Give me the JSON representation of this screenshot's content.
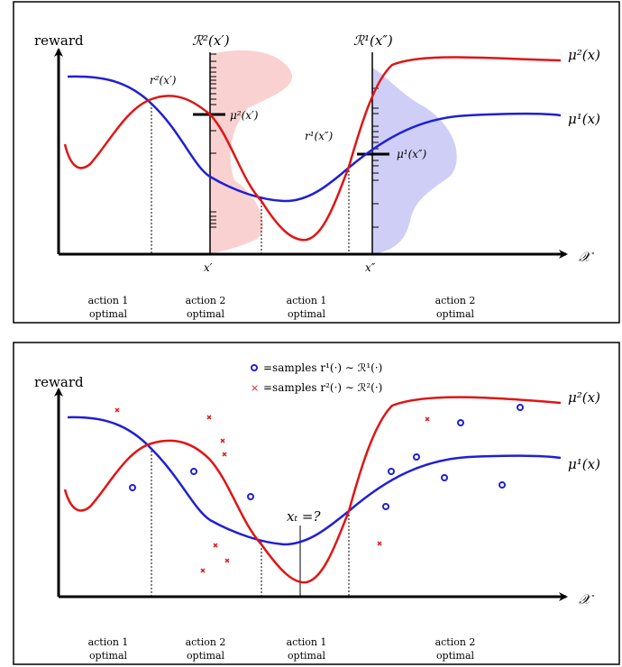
{
  "colors": {
    "mu1": "#1f1fd6",
    "mu2": "#e01515",
    "r1_shade": "#c9c9f5",
    "r2_shade": "#f9c9c9"
  },
  "top_panel": {
    "y_label": "reward",
    "x_axis_symbol": "𝒳",
    "curve_labels": {
      "mu1": "μ¹(x)",
      "mu2": "μ²(x)"
    },
    "dist_labels": {
      "r2": "ℛ²(x′)",
      "r1": "ℛ¹(x″)"
    },
    "point_labels": {
      "r2_at_xprime": "r²(x′)",
      "mu2_at_xprime": "μ²(x′)",
      "r1_at_xdprime": "r¹(x″)",
      "mu1_at_xdprime": "μ¹(x″)"
    },
    "x_ticks": {
      "x_prime": "x′",
      "x_dprime": "x″"
    },
    "regions": [
      {
        "line1": "action 1",
        "line2": "optimal"
      },
      {
        "line1": "action 2",
        "line2": "optimal"
      },
      {
        "line1": "action 1",
        "line2": "optimal"
      },
      {
        "line1": "action 2",
        "line2": "optimal"
      }
    ]
  },
  "bottom_panel": {
    "y_label": "reward",
    "x_axis_symbol": "𝒳",
    "curve_labels": {
      "mu1": "μ¹(x)",
      "mu2": "μ²(x)"
    },
    "legend": {
      "samples1": "=samples r¹(·) ∼ ℛ¹(·)",
      "samples2": "=samples r²(·) ∼ ℛ²(·)"
    },
    "query_label": "xₜ =?",
    "regions": [
      {
        "line1": "action 1",
        "line2": "optimal"
      },
      {
        "line1": "action 2",
        "line2": "optimal"
      },
      {
        "line1": "action 1",
        "line2": "optimal"
      },
      {
        "line1": "action 2",
        "line2": "optimal"
      }
    ]
  }
}
